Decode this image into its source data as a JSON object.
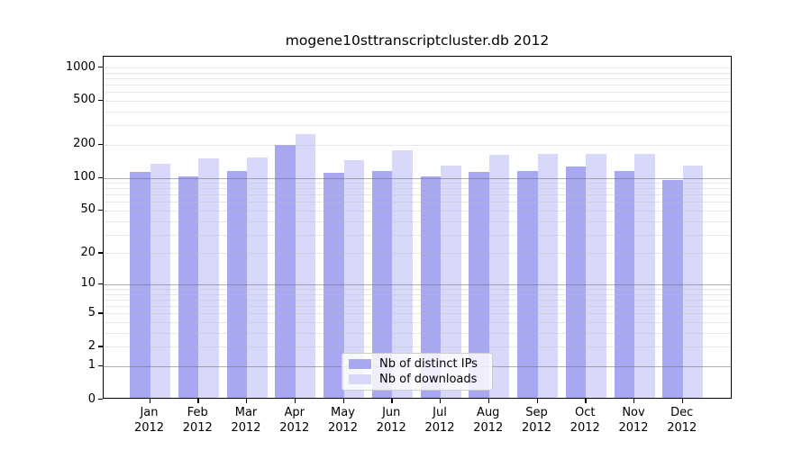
{
  "chart_data": {
    "type": "bar",
    "title": "mogene10sttranscriptcluster.db 2012",
    "categories": [
      "Jan",
      "Feb",
      "Mar",
      "Apr",
      "May",
      "Jun",
      "Jul",
      "Aug",
      "Sep",
      "Oct",
      "Nov",
      "Dec"
    ],
    "x_year_label": "2012",
    "series": [
      {
        "name": "Nb of distinct IPs",
        "color": "#a8a8f2",
        "values": [
          108,
          100,
          110,
          190,
          107,
          112,
          99,
          108,
          110,
          122,
          110,
          92
        ]
      },
      {
        "name": "Nb of downloads",
        "color": "#d8d8fa",
        "values": [
          130,
          145,
          147,
          240,
          140,
          170,
          125,
          155,
          160,
          160,
          160,
          125
        ]
      }
    ],
    "y_axis": {
      "scale": "log10(value+1)",
      "range": [
        0,
        1000
      ],
      "tick_labels": [
        1000,
        500,
        200,
        100,
        50,
        20,
        10,
        5,
        2,
        1,
        0
      ]
    },
    "grid": {
      "enabled": true,
      "major_lines_at": [
        1,
        10,
        100
      ],
      "minor_lines": "2-9 per decade and 1000"
    },
    "legend": {
      "position": "lower-center"
    }
  }
}
